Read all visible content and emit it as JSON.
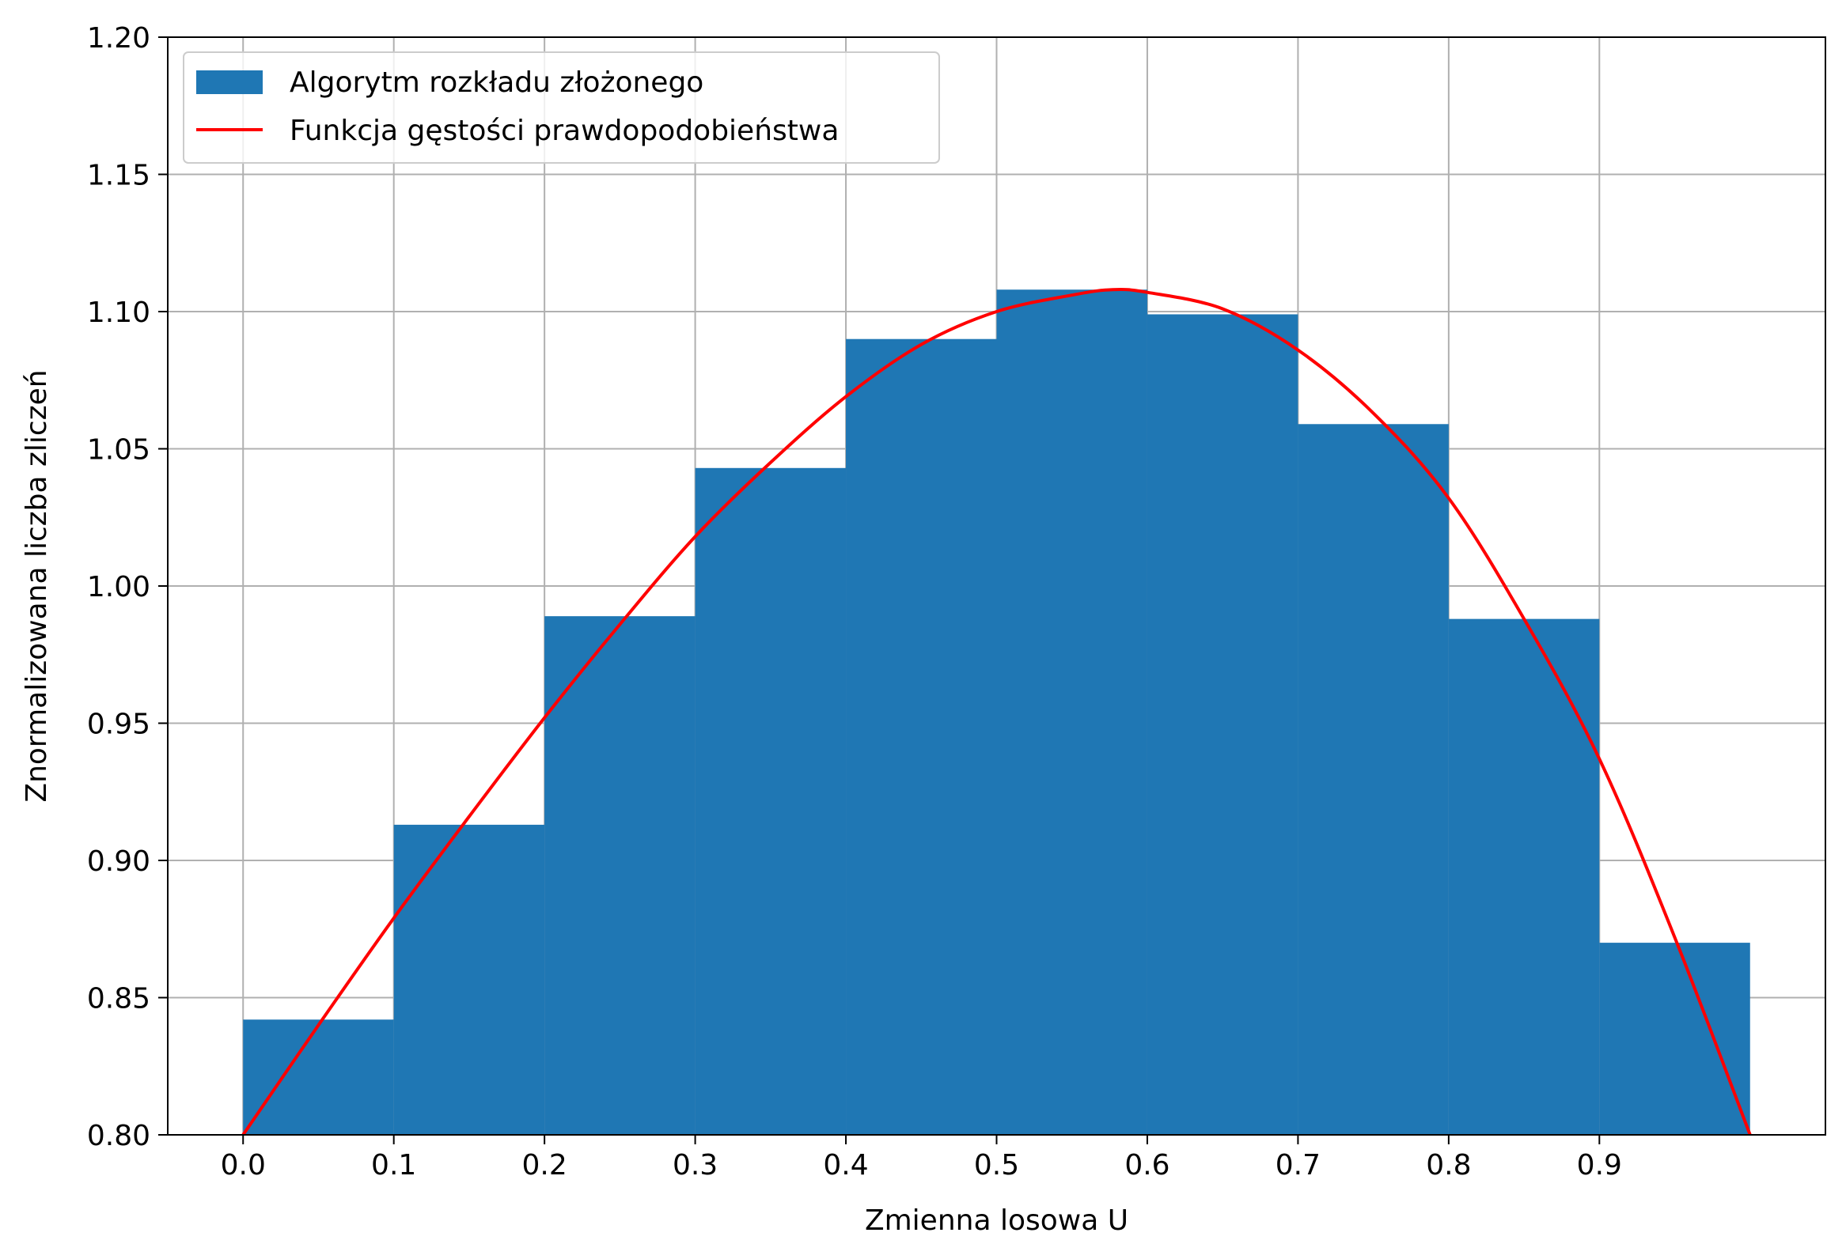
{
  "chart_data": {
    "type": "bar",
    "xlabel": "Zmienna losowa U",
    "ylabel": "Znormalizowana liczba zliczeń",
    "xlim": [
      -0.05,
      1.05
    ],
    "ylim": [
      0.8,
      1.2
    ],
    "grid": true,
    "legend_position": "top-left",
    "xticks": [
      "0.0",
      "0.1",
      "0.2",
      "0.3",
      "0.4",
      "0.5",
      "0.6",
      "0.7",
      "0.8",
      "0.9"
    ],
    "yticks": [
      "0.80",
      "0.85",
      "0.90",
      "0.95",
      "1.00",
      "1.05",
      "1.10",
      "1.15",
      "1.20"
    ],
    "histogram": {
      "name": "Algorytm rozkładu złożonego",
      "color": "#1f77b4",
      "bin_edges": [
        0.0,
        0.1,
        0.2,
        0.3,
        0.4,
        0.5,
        0.6,
        0.7,
        0.8,
        0.9,
        1.0
      ],
      "values": [
        0.842,
        0.913,
        0.989,
        1.043,
        1.09,
        1.108,
        1.099,
        1.059,
        0.988,
        0.87
      ]
    },
    "line": {
      "name": "Funkcja gęstości prawdopodobieństwa",
      "color": "#ff0000",
      "x": [
        0.0,
        0.05,
        0.1,
        0.15,
        0.2,
        0.25,
        0.3,
        0.35,
        0.4,
        0.45,
        0.5,
        0.55,
        0.577,
        0.6,
        0.65,
        0.7,
        0.75,
        0.8,
        0.85,
        0.9,
        0.95,
        1.0
      ],
      "y": [
        0.8,
        0.84,
        0.879,
        0.916,
        0.952,
        0.986,
        1.018,
        1.045,
        1.069,
        1.088,
        1.1,
        1.106,
        1.108,
        1.107,
        1.101,
        1.086,
        1.063,
        1.032,
        0.988,
        0.937,
        0.872,
        0.8
      ]
    }
  }
}
